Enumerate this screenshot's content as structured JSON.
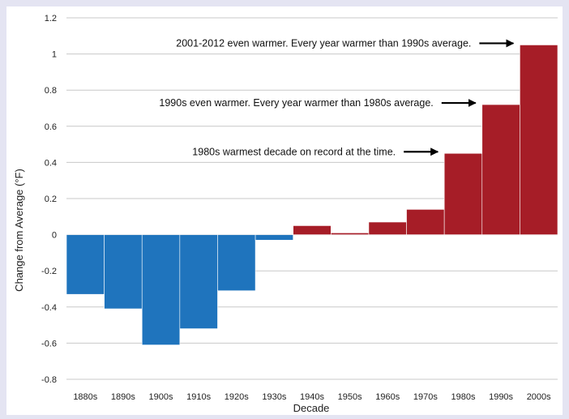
{
  "chart_data": {
    "type": "bar",
    "categories": [
      "1880s",
      "1890s",
      "1900s",
      "1910s",
      "1920s",
      "1930s",
      "1940s",
      "1950s",
      "1960s",
      "1970s",
      "1980s",
      "1990s",
      "2000s"
    ],
    "values": [
      -0.33,
      -0.41,
      -0.61,
      -0.52,
      -0.31,
      -0.03,
      0.05,
      0.01,
      0.07,
      0.14,
      0.45,
      0.72,
      1.05
    ],
    "xlabel": "Decade",
    "ylabel": "Change from Average (°F)",
    "ylim": [
      -0.8,
      1.2
    ],
    "yticks": [
      1.2,
      1,
      0.8,
      0.6,
      0.4,
      0.2,
      0,
      -0.2,
      -0.4,
      -0.6,
      -0.8
    ],
    "ytick_labels": [
      "1.2",
      "1",
      "0.8",
      "0.6",
      "0.4",
      "0.2",
      "0",
      "-0.2",
      "-0.4",
      "-0.6",
      "-0.8"
    ],
    "grid": true,
    "colors": {
      "negative": "#1f74bd",
      "positive": "#a61d27",
      "background": "#ffffff",
      "page": "#e4e4f2",
      "grid": "#c8c8c8"
    },
    "annotations": [
      {
        "text": "2001-2012 even warmer. Every year warmer than 1990s average.",
        "category": "2000s"
      },
      {
        "text": "1990s even warmer. Every year warmer than 1980s average.",
        "category": "1990s"
      },
      {
        "text": "1980s warmest decade on record at the time.",
        "category": "1980s"
      }
    ]
  }
}
